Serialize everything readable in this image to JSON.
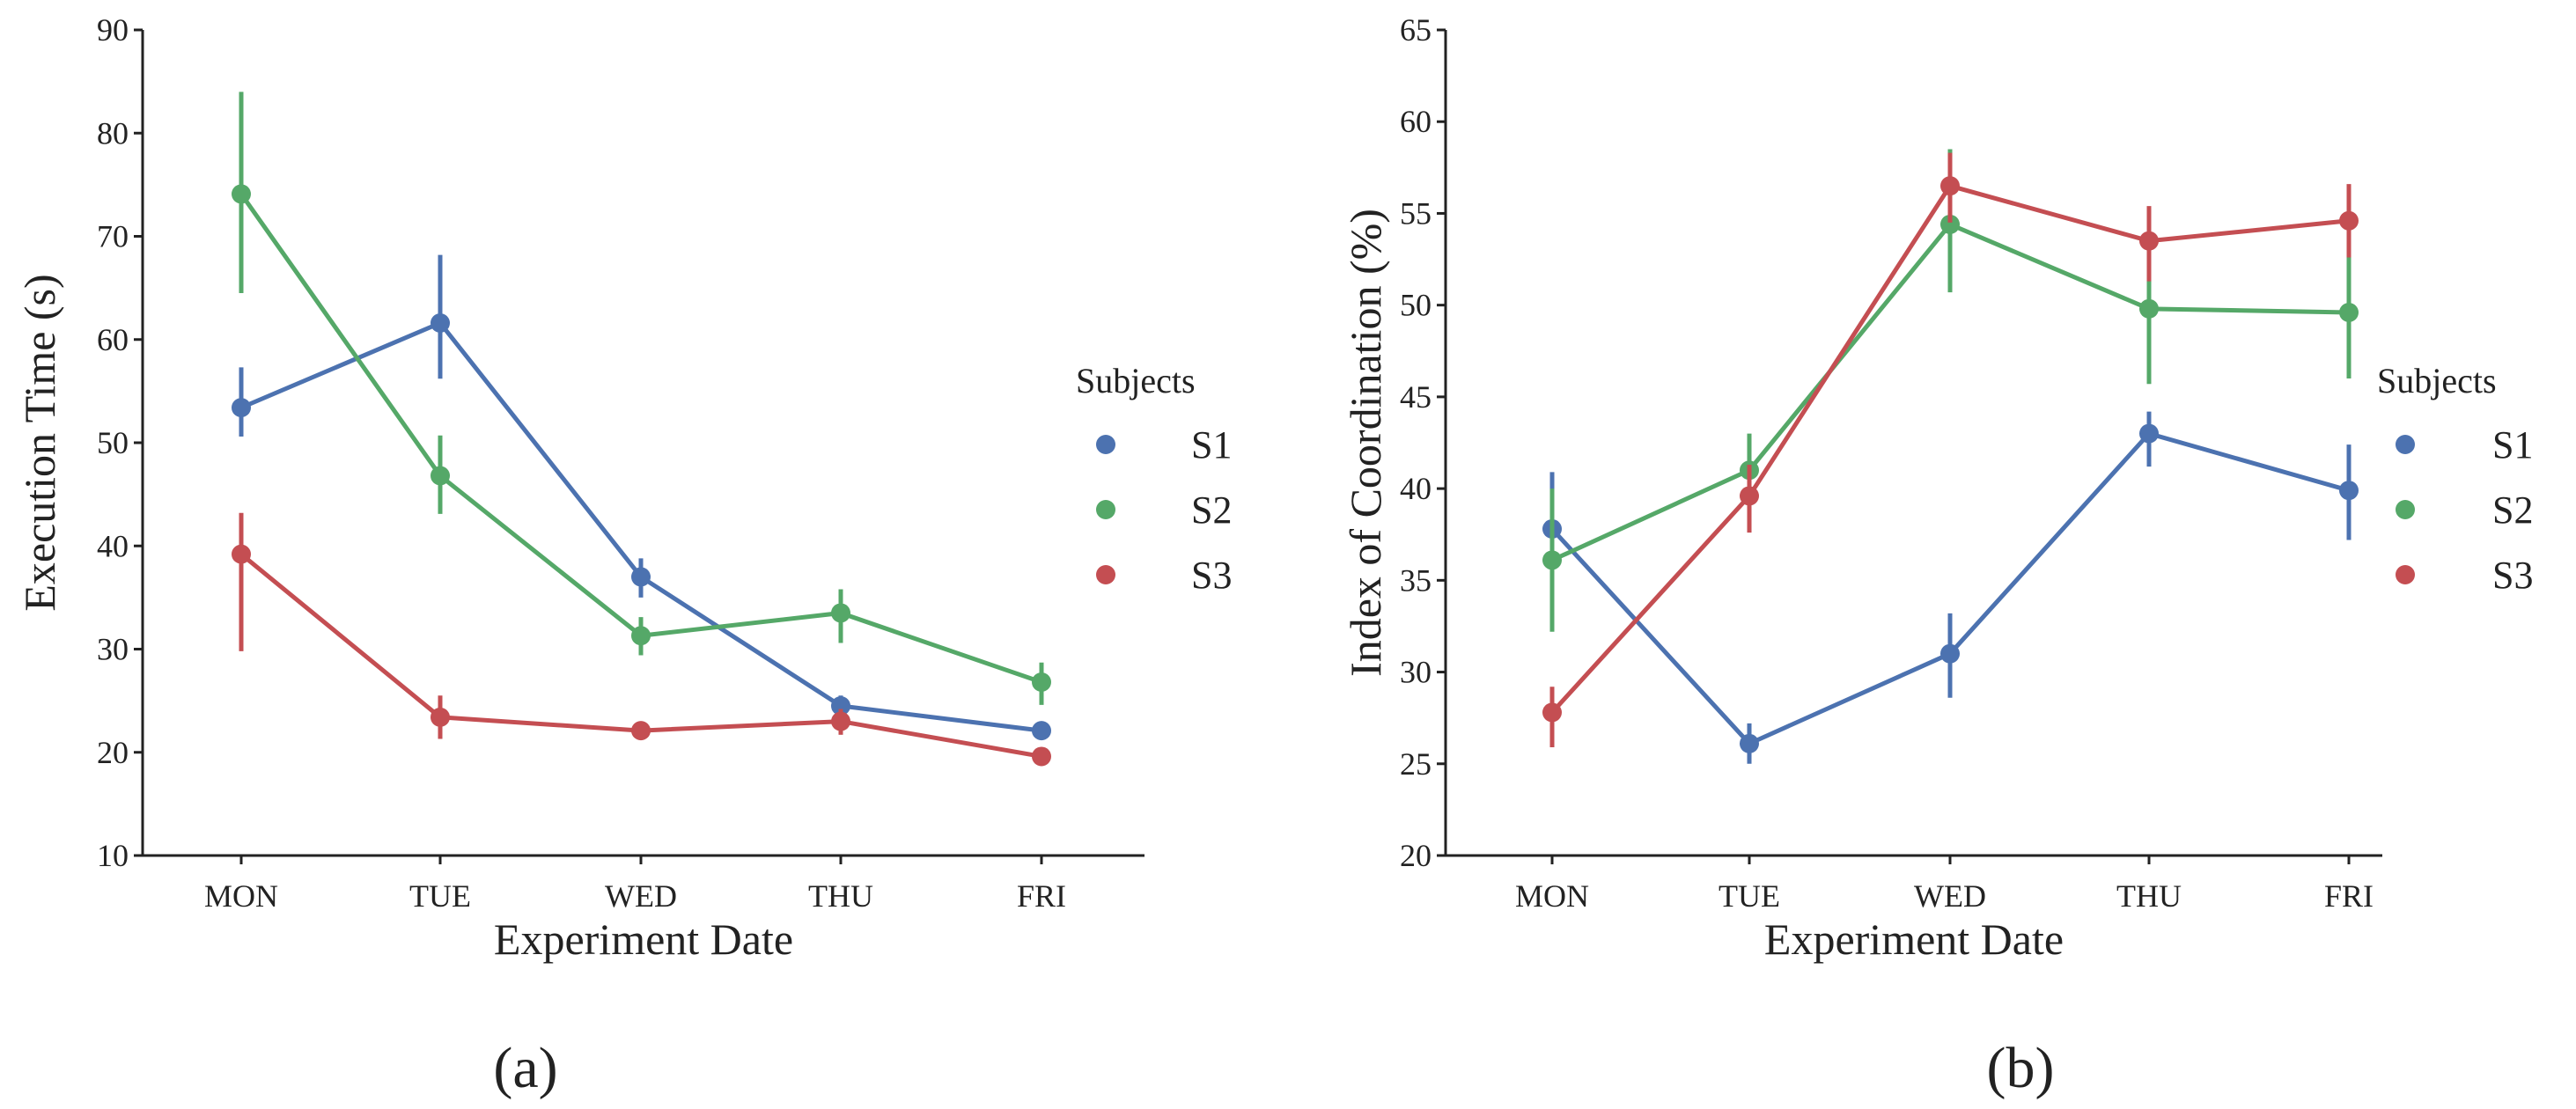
{
  "colors": {
    "S1": "#4c72b0",
    "S2": "#55a868",
    "S3": "#c44e52",
    "axis": "#222222"
  },
  "chart_data": [
    {
      "type": "line",
      "caption": "(a)",
      "xlabel": "Experiment Date",
      "ylabel": "Execution Time (s)",
      "categories": [
        "MON",
        "TUE",
        "WED",
        "THU",
        "FRI"
      ],
      "ylim": [
        10,
        90
      ],
      "yticks": [
        10,
        20,
        30,
        40,
        50,
        60,
        70,
        80,
        90
      ],
      "legend": {
        "title": "Subjects",
        "placement": "right"
      },
      "grid": false,
      "series": [
        {
          "name": "S1",
          "values": [
            53.4,
            61.6,
            37.0,
            24.5,
            22.1
          ],
          "ci_low": [
            50.6,
            56.2,
            35.0,
            23.5,
            21.5
          ],
          "ci_high": [
            57.3,
            68.2,
            38.8,
            25.5,
            22.7
          ]
        },
        {
          "name": "S2",
          "values": [
            74.1,
            46.8,
            31.3,
            33.5,
            26.8
          ],
          "ci_low": [
            64.5,
            43.1,
            29.4,
            30.6,
            24.6
          ],
          "ci_high": [
            84.0,
            50.7,
            33.1,
            35.8,
            28.7
          ]
        },
        {
          "name": "S3",
          "values": [
            39.2,
            23.4,
            22.1,
            23.0,
            19.6
          ],
          "ci_low": [
            29.8,
            21.3,
            21.5,
            21.7,
            18.9
          ],
          "ci_high": [
            43.2,
            25.5,
            22.7,
            24.2,
            20.3
          ]
        }
      ]
    },
    {
      "type": "line",
      "caption": "(b)",
      "xlabel": "Experiment Date",
      "ylabel": "Index of Coordination (%)",
      "categories": [
        "MON",
        "TUE",
        "WED",
        "THU",
        "FRI"
      ],
      "ylim": [
        20,
        65
      ],
      "yticks": [
        20,
        25,
        30,
        35,
        40,
        45,
        50,
        55,
        60,
        65
      ],
      "legend": {
        "title": "Subjects",
        "placement": "right"
      },
      "grid": false,
      "series": [
        {
          "name": "S1",
          "values": [
            37.8,
            26.1,
            31.0,
            43.0,
            39.9
          ],
          "ci_low": [
            35.0,
            25.0,
            28.6,
            41.2,
            37.2
          ],
          "ci_high": [
            40.9,
            27.2,
            33.2,
            44.2,
            42.4
          ]
        },
        {
          "name": "S2",
          "values": [
            36.1,
            41.0,
            54.4,
            49.8,
            49.6
          ],
          "ci_low": [
            32.2,
            39.0,
            50.7,
            45.7,
            46.0
          ],
          "ci_high": [
            40.0,
            43.0,
            58.5,
            51.5,
            52.6
          ]
        },
        {
          "name": "S3",
          "values": [
            27.8,
            39.6,
            56.5,
            53.5,
            54.6
          ],
          "ci_low": [
            25.9,
            37.6,
            54.5,
            51.3,
            52.6
          ],
          "ci_high": [
            29.2,
            41.3,
            58.3,
            55.4,
            56.6
          ]
        }
      ]
    }
  ]
}
